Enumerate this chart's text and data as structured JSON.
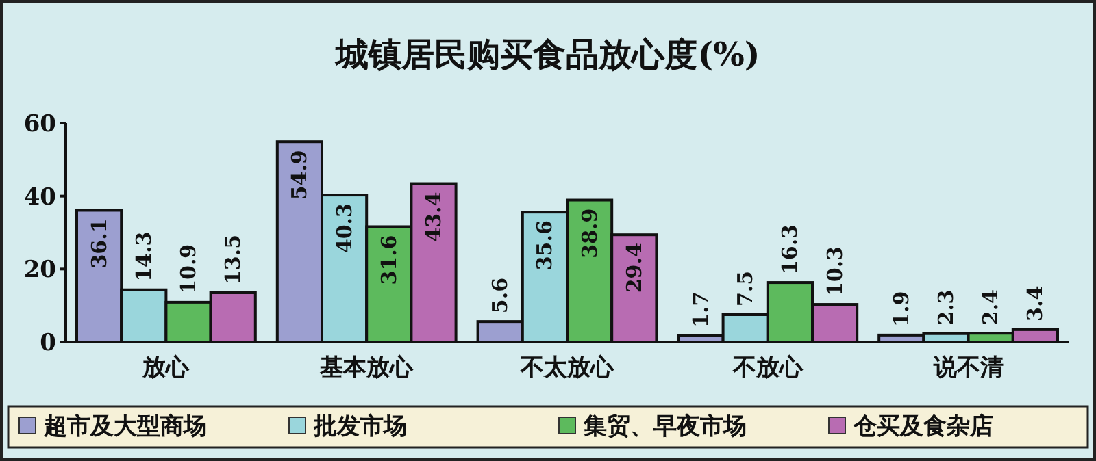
{
  "chart_data": {
    "type": "bar",
    "title": "城镇居民购买食品放心度(%)",
    "categories": [
      "放心",
      "基本放心",
      "不太放心",
      "不放心",
      "说不清"
    ],
    "series": [
      {
        "name": "超市及大型商场",
        "color": "#9c9fd0",
        "values": [
          36.1,
          54.9,
          5.6,
          1.7,
          1.9
        ]
      },
      {
        "name": "批发市场",
        "color": "#9ad6dc",
        "values": [
          14.3,
          40.3,
          35.6,
          7.5,
          2.3
        ]
      },
      {
        "name": "集贸、早夜市场",
        "color": "#5dba5d",
        "values": [
          10.9,
          31.6,
          38.9,
          16.3,
          2.4
        ]
      },
      {
        "name": "仓买及食杂店",
        "color": "#b86cb2",
        "values": [
          13.5,
          43.4,
          29.4,
          10.3,
          3.4
        ]
      }
    ],
    "ylim": [
      0,
      60
    ],
    "yticks": [
      0,
      20,
      40,
      60
    ],
    "data_labels": true,
    "grid": false,
    "legend": "bottom"
  }
}
